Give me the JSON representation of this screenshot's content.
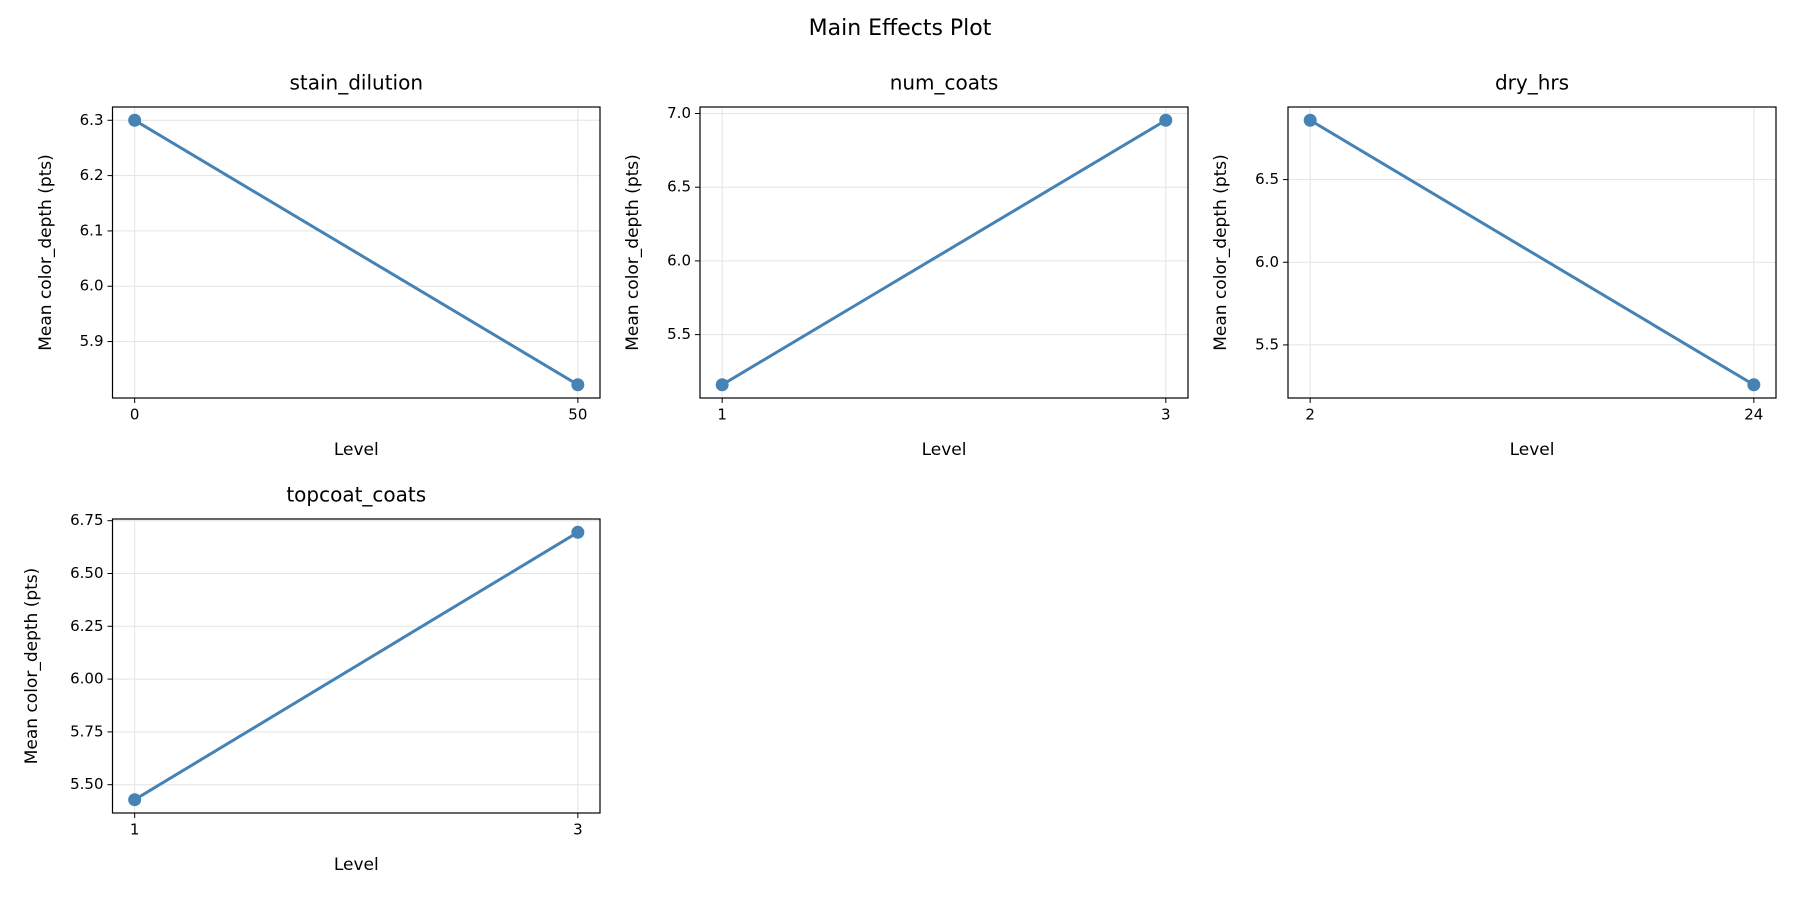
{
  "title": "Main Effects Plot",
  "chart_data": [
    {
      "type": "line",
      "title": "stain_dilution",
      "x_label": "Level",
      "y_label": "Mean color_depth (pts)",
      "x": [
        0,
        50
      ],
      "values": [
        6.3,
        5.822
      ],
      "color": "#4682b4",
      "xlim": [
        -2.5,
        52.5
      ],
      "xticks": [
        0,
        50
      ],
      "ylim": [
        5.798,
        6.324
      ],
      "yticks": [
        5.9,
        {
          "value": 6,
          "label": "6.0"
        },
        6.1,
        6.2,
        6.3
      ],
      "grid": true
    },
    {
      "type": "line",
      "title": "num_coats",
      "x_label": "Level",
      "y_label": "Mean color_depth (pts)",
      "x": [
        1,
        3
      ],
      "values": [
        5.16,
        6.954
      ],
      "color": "#4682b4",
      "xlim": [
        0.9,
        3.1
      ],
      "xticks": [
        1,
        3
      ],
      "ylim": [
        5.07,
        7.044
      ],
      "yticks": [
        5.5,
        {
          "value": 6,
          "label": "6.0"
        },
        6.5,
        {
          "value": 7,
          "label": "7.0"
        }
      ],
      "grid": true
    },
    {
      "type": "line",
      "title": "dry_hrs",
      "x_label": "Level",
      "y_label": "Mean color_depth (pts)",
      "x": [
        2,
        24
      ],
      "values": [
        6.859,
        5.259
      ],
      "color": "#4682b4",
      "xlim": [
        0.9,
        25.1
      ],
      "xticks": [
        2,
        24
      ],
      "ylim": [
        5.179,
        6.939
      ],
      "yticks": [
        5.5,
        {
          "value": 6,
          "label": "6.0"
        },
        6.5
      ],
      "grid": true
    },
    {
      "type": "line",
      "title": "topcoat_coats",
      "x_label": "Level",
      "y_label": "Mean color_depth (pts)",
      "x": [
        1,
        3
      ],
      "values": [
        5.429,
        6.695
      ],
      "color": "#4682b4",
      "xlim": [
        0.9,
        3.1
      ],
      "xticks": [
        1,
        3
      ],
      "ylim": [
        5.366,
        6.758
      ],
      "yticks": [
        {
          "value": 5.5,
          "label": "5.50"
        },
        5.75,
        {
          "value": 6,
          "label": "6.00"
        },
        6.25,
        {
          "value": 6.5,
          "label": "6.50"
        },
        6.75
      ],
      "grid": true
    }
  ]
}
